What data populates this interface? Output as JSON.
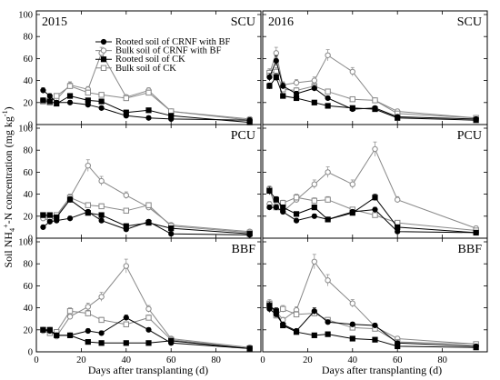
{
  "colors": {
    "rooted": "#000000",
    "bulk": "#888888"
  },
  "figure": {
    "ylabel_prefix": "Soil NH",
    "ylabel_sub": "4",
    "ylabel_sup1": "+",
    "ylabel_mid": "-N concentration (mg kg",
    "ylabel_sup2": "-1",
    "ylabel_suffix": ")",
    "xlabel_left": "Days after transplanting (d)",
    "xlabel_right": "Days after transplanting (d)"
  },
  "chart_data": {
    "type": "line",
    "ylim": [
      0,
      100
    ],
    "y_ticks": [
      0,
      20,
      40,
      60,
      80,
      100
    ],
    "xlim": [
      0,
      100
    ],
    "x_ticks": [
      0,
      20,
      40,
      60,
      80
    ],
    "series_meta": [
      {
        "name": "Rooted soil of CRNF with BF",
        "marker": "filled-circle",
        "color": "#000000"
      },
      {
        "name": "Bulk soil of CRNF with BF",
        "marker": "open-circle",
        "color": "#888888"
      },
      {
        "name": "Rooted soil of CK",
        "marker": "filled-square",
        "color": "#000000"
      },
      {
        "name": "Bulk soil of CK",
        "marker": "open-square",
        "color": "#888888"
      }
    ],
    "x": [
      3,
      6,
      9,
      15,
      23,
      29,
      40,
      50,
      60,
      95
    ],
    "panels": [
      {
        "year": "2015",
        "treatment": "SCU",
        "series": [
          {
            "values": [
              31,
              26,
              20,
              20,
              18,
              15,
              8,
              6,
              5,
              4
            ]
          },
          {
            "values": [
              22,
              24,
              23,
              36,
              32,
              65,
              25,
              31,
              12,
              5
            ]
          },
          {
            "values": [
              22,
              21,
              19,
              26,
              22,
              21,
              11,
              13,
              8,
              2
            ]
          },
          {
            "values": [
              21,
              20,
              26,
              35,
              29,
              27,
              24,
              29,
              12,
              4
            ]
          }
        ]
      },
      {
        "year": "2016",
        "treatment": "SCU",
        "series": [
          {
            "values": [
              43,
              58,
              35,
              28,
              33,
              24,
              14,
              15,
              7,
              5
            ]
          },
          {
            "values": [
              46,
              65,
              36,
              38,
              40,
              63,
              48,
              22,
              12,
              6
            ]
          },
          {
            "values": [
              35,
              43,
              26,
              24,
              20,
              17,
              15,
              14,
              6,
              4
            ]
          },
          {
            "values": [
              47,
              48,
              32,
              31,
              35,
              30,
              23,
              22,
              10,
              6
            ]
          }
        ]
      },
      {
        "year": "",
        "treatment": "PCU",
        "series": [
          {
            "values": [
              10,
              15,
              16,
              18,
              24,
              16,
              8,
              15,
              4,
              3
            ]
          },
          {
            "values": [
              18,
              16,
              20,
              37,
              66,
              52,
              39,
              28,
              12,
              6
            ]
          },
          {
            "values": [
              21,
              21,
              19,
              35,
              23,
              21,
              11,
              14,
              9,
              4
            ]
          },
          {
            "values": [
              21,
              19,
              21,
              37,
              30,
              29,
              25,
              30,
              11,
              5
            ]
          }
        ]
      },
      {
        "year": "",
        "treatment": "PCU",
        "series": [
          {
            "values": [
              28,
              28,
              24,
              16,
              20,
              17,
              24,
              26,
              6,
              5
            ]
          },
          {
            "values": [
              31,
              29,
              24,
              35,
              49,
              60,
              49,
              81,
              35,
              9
            ]
          },
          {
            "values": [
              43,
              35,
              28,
              22,
              28,
              17,
              23,
              37,
              10,
              5
            ]
          },
          {
            "values": [
              44,
              28,
              32,
              37,
              34,
              35,
              26,
              21,
              14,
              7
            ]
          }
        ]
      },
      {
        "year": "",
        "treatment": "BBF",
        "series": [
          {
            "values": [
              20,
              19,
              15,
              15,
              19,
              17,
              31,
              20,
              8,
              3
            ]
          },
          {
            "values": [
              19,
              20,
              14,
              32,
              41,
              50,
              78,
              39,
              12,
              4
            ]
          },
          {
            "values": [
              20,
              20,
              15,
              15,
              9,
              8,
              8,
              8,
              10,
              3
            ]
          },
          {
            "values": [
              20,
              17,
              18,
              37,
              35,
              29,
              25,
              31,
              11,
              3
            ]
          }
        ]
      },
      {
        "year": "",
        "treatment": "BBF",
        "series": [
          {
            "values": [
              39,
              34,
              25,
              19,
              37,
              27,
              25,
              24,
              8,
              5
            ]
          },
          {
            "values": [
              42,
              37,
              29,
              38,
              82,
              65,
              44,
              23,
              12,
              7
            ]
          },
          {
            "values": [
              42,
              37,
              24,
              18,
              15,
              16,
              12,
              11,
              5,
              4
            ]
          },
          {
            "values": [
              44,
              33,
              39,
              34,
              35,
              29,
              22,
              21,
              9,
              7
            ]
          }
        ]
      }
    ]
  }
}
